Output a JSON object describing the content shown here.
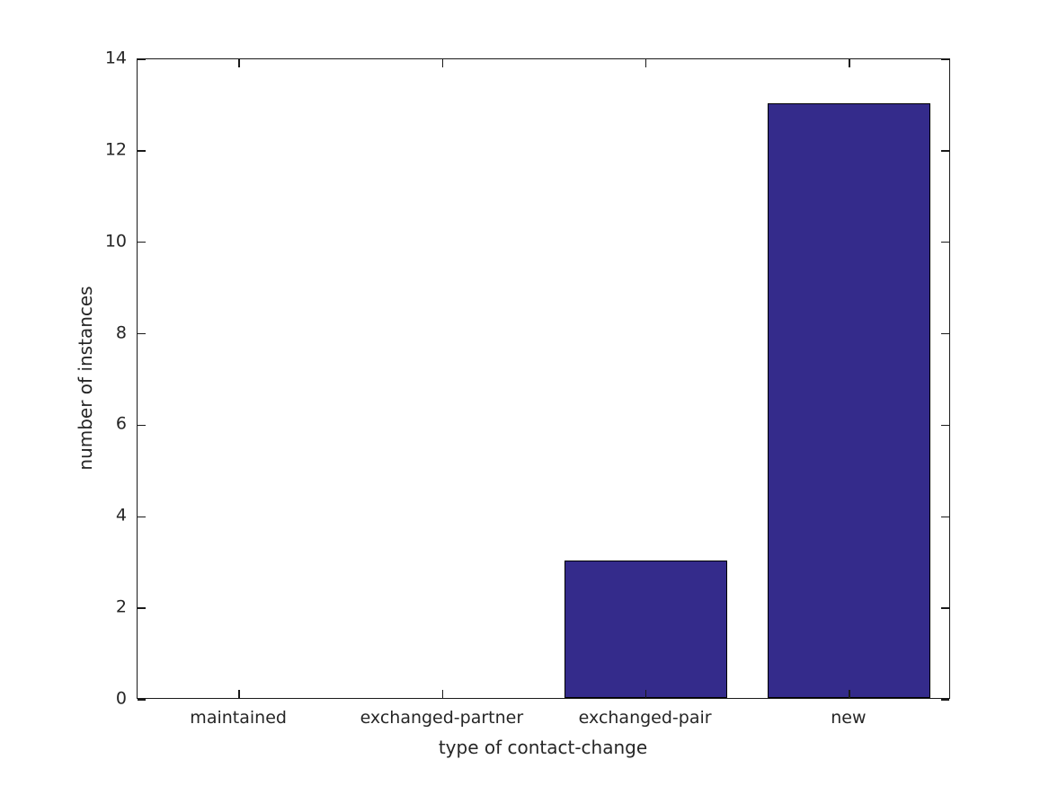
{
  "chart_data": {
    "type": "bar",
    "categories": [
      "maintained",
      "exchanged-partner",
      "exchanged-pair",
      "new"
    ],
    "values": [
      0,
      0,
      3,
      13
    ],
    "title": "",
    "xlabel": "type of contact-change",
    "ylabel": "number of instances",
    "ylim": [
      0,
      14
    ],
    "yticks": [
      0,
      2,
      4,
      6,
      8,
      10,
      12,
      14
    ],
    "grid": false,
    "legend": "none",
    "bar_color": "#342b8b",
    "bar_edge_color": "#000000",
    "axis_color": "#1a1a1a",
    "text_color": "#262626",
    "background_color": "#ffffff"
  }
}
